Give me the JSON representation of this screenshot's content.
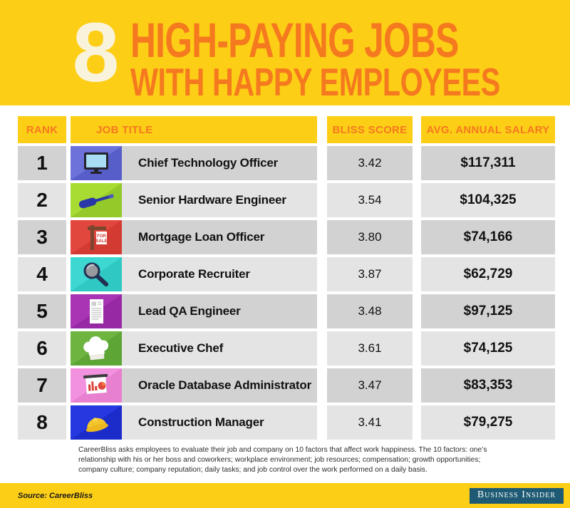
{
  "header": {
    "count": "8",
    "title_line1": "HIGH-PAYING JOBS",
    "title_line2": "WITH HAPPY EMPLOYEES"
  },
  "table": {
    "columns": [
      "RANK",
      "JOB TITLE",
      "BLISS SCORE",
      "AVG. ANNUAL SALARY"
    ],
    "rows": [
      {
        "rank": "1",
        "job": "Chief Technology Officer",
        "icon": "monitor-icon",
        "icon_bg": "#6C72DA",
        "score": "3.42",
        "salary": "$117,311"
      },
      {
        "rank": "2",
        "job": "Senior Hardware Engineer",
        "icon": "screwdriver-icon",
        "icon_bg": "#A9DC33",
        "score": "3.54",
        "salary": "$104,325"
      },
      {
        "rank": "3",
        "job": "Mortgage Loan Officer",
        "icon": "for-sale-sign-icon",
        "icon_bg": "#E2473E",
        "score": "3.80",
        "salary": "$74,166"
      },
      {
        "rank": "4",
        "job": "Corporate Recruiter",
        "icon": "magnifier-icon",
        "icon_bg": "#3ED8D3",
        "score": "3.87",
        "salary": "$62,729"
      },
      {
        "rank": "5",
        "job": "Lead QA Engineer",
        "icon": "document-icon",
        "icon_bg": "#A935B5",
        "score": "3.48",
        "salary": "$97,125"
      },
      {
        "rank": "6",
        "job": "Executive Chef",
        "icon": "chef-hat-icon",
        "icon_bg": "#6DB440",
        "score": "3.61",
        "salary": "$74,125"
      },
      {
        "rank": "7",
        "job": "Oracle Database Administrator",
        "icon": "presentation-chart-icon",
        "icon_bg": "#F292DE",
        "score": "3.47",
        "salary": "$83,353"
      },
      {
        "rank": "8",
        "job": "Construction Manager",
        "icon": "hard-hat-icon",
        "icon_bg": "#2638E0",
        "score": "3.41",
        "salary": "$79,275"
      }
    ]
  },
  "footnote": "CareerBliss asks employees to evaluate their job and company on 10 factors that affect work happiness. The 10 factors: one’s relationship with his or her boss and coworkers; workplace environment; job resources; compensation; growth opportunities; company culture; company reputation; daily tasks; and job control over the work performed on a daily basis.",
  "footer": {
    "source": "Source: CareerBliss",
    "brand": "Business Insider"
  },
  "colors": {
    "background_yellow": "#FDCE16",
    "title_orange": "#F5791F",
    "count_cream": "#FAF3DC",
    "row_dark_gray": "#D2D2D2",
    "row_light_gray": "#E4E4E4",
    "text_black": "#111111",
    "footer_logo_teal": "#1E5A73"
  },
  "chart_data": {
    "type": "table",
    "title": "8 High-Paying Jobs With Happy Employees",
    "columns": [
      "Rank",
      "Job Title",
      "Bliss Score",
      "Avg. Annual Salary ($)"
    ],
    "rows": [
      [
        1,
        "Chief Technology Officer",
        3.42,
        117311
      ],
      [
        2,
        "Senior Hardware Engineer",
        3.54,
        104325
      ],
      [
        3,
        "Mortgage Loan Officer",
        3.8,
        74166
      ],
      [
        4,
        "Corporate Recruiter",
        3.87,
        62729
      ],
      [
        5,
        "Lead QA Engineer",
        3.48,
        97125
      ],
      [
        6,
        "Executive Chef",
        3.61,
        74125
      ],
      [
        7,
        "Oracle Database Administrator",
        3.47,
        83353
      ],
      [
        8,
        "Construction Manager",
        3.41,
        79275
      ]
    ],
    "source": "CareerBliss"
  }
}
